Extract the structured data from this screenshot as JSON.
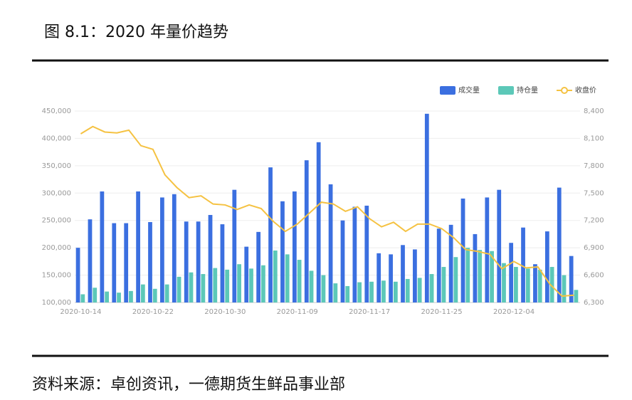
{
  "chart_data": {
    "type": "bar-line",
    "title": "图 8.1：2020 年量价趋势",
    "source": "资料来源：卓创资讯，一德期货生鲜品事业部",
    "categories": [
      "2020-10-14",
      null,
      null,
      null,
      null,
      null,
      "2020-10-22",
      null,
      null,
      null,
      null,
      null,
      "2020-10-30",
      null,
      null,
      null,
      null,
      null,
      "2020-11-09",
      null,
      null,
      null,
      null,
      null,
      "2020-11-17",
      null,
      null,
      null,
      null,
      null,
      "2020-11-25",
      null,
      null,
      null,
      null,
      null,
      "2020-12-04",
      null,
      null,
      null,
      null,
      null
    ],
    "series": [
      {
        "name": "成交量",
        "color": "#3b6fe0",
        "type": "bar",
        "values": [
          200000,
          252000,
          303000,
          245000,
          245000,
          303000,
          247000,
          292000,
          298000,
          248000,
          248000,
          260000,
          243000,
          306000,
          202000,
          229000,
          347000,
          285000,
          303000,
          360000,
          393000,
          316000,
          250000,
          275000,
          277000,
          190000,
          188000,
          205000,
          197000,
          445000,
          235000,
          242000,
          290000,
          225000,
          292000,
          306000,
          209000,
          237000,
          170000,
          230000,
          310000,
          185000
        ]
      },
      {
        "name": "持仓量",
        "color": "#5cc8b8",
        "type": "bar",
        "values": [
          115000,
          127000,
          120000,
          118000,
          121000,
          133000,
          125000,
          133000,
          147000,
          155000,
          152000,
          163000,
          160000,
          170000,
          162000,
          168000,
          195000,
          188000,
          178000,
          158000,
          150000,
          135000,
          130000,
          137000,
          138000,
          140000,
          138000,
          143000,
          145000,
          152000,
          165000,
          183000,
          200000,
          196000,
          194000,
          172000,
          165000,
          162000,
          160000,
          165000,
          150000,
          123000
        ]
      },
      {
        "name": "收盘价",
        "color": "#f5c242",
        "type": "line",
        "axis": "y2",
        "values": [
          8150,
          8230,
          8170,
          8160,
          8190,
          8020,
          7980,
          7700,
          7560,
          7450,
          7470,
          7380,
          7370,
          7320,
          7370,
          7330,
          7190,
          7080,
          7160,
          7280,
          7400,
          7380,
          7300,
          7350,
          7220,
          7130,
          7180,
          7080,
          7160,
          7160,
          7110,
          7010,
          6880,
          6860,
          6830,
          6670,
          6750,
          6680,
          6690,
          6500,
          6370,
          6380
        ]
      }
    ],
    "ylim": [
      100000,
      450000
    ],
    "yticks": [
      {
        "value": 100000,
        "label": "100,000"
      },
      {
        "value": 150000,
        "label": "150,000"
      },
      {
        "value": 200000,
        "label": "200,000"
      },
      {
        "value": 250000,
        "label": "250,000"
      },
      {
        "value": 300000,
        "label": "300,000"
      },
      {
        "value": 350000,
        "label": "350,000"
      },
      {
        "value": 400000,
        "label": "400,000"
      },
      {
        "value": 450000,
        "label": "450,000"
      }
    ],
    "y2lim": [
      6300,
      8400
    ],
    "y2ticks": [
      {
        "value": 6300,
        "label": "6,300"
      },
      {
        "value": 6600,
        "label": "6,600"
      },
      {
        "value": 6900,
        "label": "6,900"
      },
      {
        "value": 7200,
        "label": "7,200"
      },
      {
        "value": 7500,
        "label": "7,500"
      },
      {
        "value": 7800,
        "label": "7,800"
      },
      {
        "value": 8100,
        "label": "8,100"
      },
      {
        "value": 8400,
        "label": "8,400"
      }
    ],
    "grid": true
  }
}
